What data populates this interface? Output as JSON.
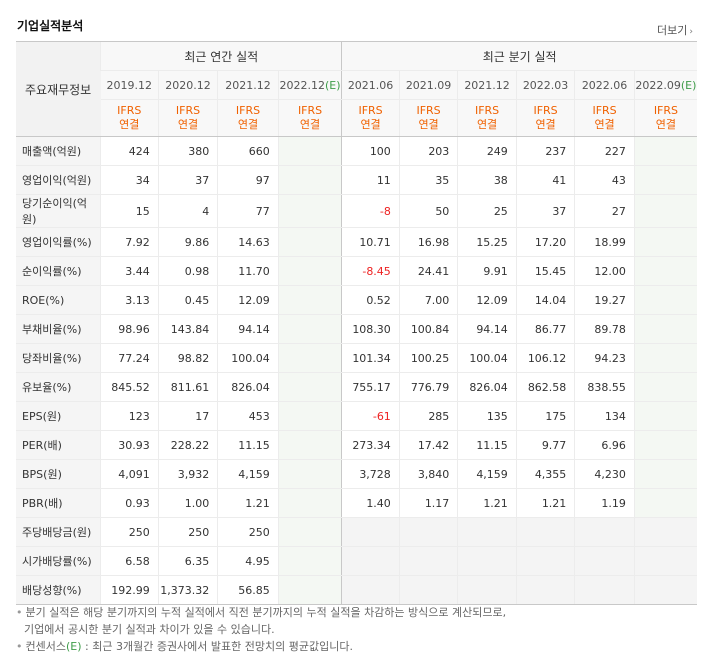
{
  "title": "기업실적분석",
  "more_label": "더보기",
  "header": {
    "row_label": "주요재무정보",
    "annual_label": "최근 연간 실적",
    "quarter_label": "최근 분기 실적",
    "annual_periods": [
      "2019.12",
      "2020.12",
      "2021.12",
      "2022.12"
    ],
    "quarter_periods": [
      "2021.06",
      "2021.09",
      "2021.12",
      "2022.03",
      "2022.06",
      "2022.09"
    ],
    "est_tag": "(E)",
    "ifrs": "IFRS",
    "consolidated": "연결"
  },
  "rows": [
    {
      "label": "매출액(억원)",
      "annual": [
        "424",
        "380",
        "660",
        ""
      ],
      "quarter": [
        "100",
        "203",
        "249",
        "237",
        "227",
        ""
      ]
    },
    {
      "label": "영업이익(억원)",
      "annual": [
        "34",
        "37",
        "97",
        ""
      ],
      "quarter": [
        "11",
        "35",
        "38",
        "41",
        "43",
        ""
      ]
    },
    {
      "label": "당기순이익(억원)",
      "annual": [
        "15",
        "4",
        "77",
        ""
      ],
      "quarter": [
        "-8",
        "50",
        "25",
        "37",
        "27",
        ""
      ]
    },
    {
      "label": "영업이익률(%)",
      "annual": [
        "7.92",
        "9.86",
        "14.63",
        ""
      ],
      "quarter": [
        "10.71",
        "16.98",
        "15.25",
        "17.20",
        "18.99",
        ""
      ]
    },
    {
      "label": "순이익률(%)",
      "annual": [
        "3.44",
        "0.98",
        "11.70",
        ""
      ],
      "quarter": [
        "-8.45",
        "24.41",
        "9.91",
        "15.45",
        "12.00",
        ""
      ]
    },
    {
      "label": "ROE(%)",
      "annual": [
        "3.13",
        "0.45",
        "12.09",
        ""
      ],
      "quarter": [
        "0.52",
        "7.00",
        "12.09",
        "14.04",
        "19.27",
        ""
      ]
    },
    {
      "label": "부채비율(%)",
      "annual": [
        "98.96",
        "143.84",
        "94.14",
        ""
      ],
      "quarter": [
        "108.30",
        "100.84",
        "94.14",
        "86.77",
        "89.78",
        ""
      ]
    },
    {
      "label": "당좌비율(%)",
      "annual": [
        "77.24",
        "98.82",
        "100.04",
        ""
      ],
      "quarter": [
        "101.34",
        "100.25",
        "100.04",
        "106.12",
        "94.23",
        ""
      ]
    },
    {
      "label": "유보율(%)",
      "annual": [
        "845.52",
        "811.61",
        "826.04",
        ""
      ],
      "quarter": [
        "755.17",
        "776.79",
        "826.04",
        "862.58",
        "838.55",
        ""
      ]
    },
    {
      "label": "EPS(원)",
      "annual": [
        "123",
        "17",
        "453",
        ""
      ],
      "quarter": [
        "-61",
        "285",
        "135",
        "175",
        "134",
        ""
      ]
    },
    {
      "label": "PER(배)",
      "annual": [
        "30.93",
        "228.22",
        "11.15",
        ""
      ],
      "quarter": [
        "273.34",
        "17.42",
        "11.15",
        "9.77",
        "6.96",
        ""
      ]
    },
    {
      "label": "BPS(원)",
      "annual": [
        "4,091",
        "3,932",
        "4,159",
        ""
      ],
      "quarter": [
        "3,728",
        "3,840",
        "4,159",
        "4,355",
        "4,230",
        ""
      ]
    },
    {
      "label": "PBR(배)",
      "annual": [
        "0.93",
        "1.00",
        "1.21",
        ""
      ],
      "quarter": [
        "1.40",
        "1.17",
        "1.21",
        "1.21",
        "1.19",
        ""
      ]
    },
    {
      "label": "주당배당금(원)",
      "annual": [
        "250",
        "250",
        "250",
        ""
      ],
      "quarter": [
        "",
        "",
        "",
        "",
        "",
        ""
      ]
    },
    {
      "label": "시가배당률(%)",
      "annual": [
        "6.58",
        "6.35",
        "4.95",
        ""
      ],
      "quarter": [
        "",
        "",
        "",
        "",
        "",
        ""
      ]
    },
    {
      "label": "배당성향(%)",
      "annual": [
        "192.99",
        "1,373.32",
        "56.85",
        ""
      ],
      "quarter": [
        "",
        "",
        "",
        "",
        "",
        ""
      ]
    }
  ],
  "notes": {
    "line1": "분기 실적은 해당 분기까지의 누적 실적에서 직전 분기까지의 누적 실적을 차감하는 방식으로 계산되므로,",
    "line2": "기업에서 공시한 분기 실적과 차이가 있을 수 있습니다.",
    "line3_a": "컨센서스",
    "line3_tag": "(E)",
    "line3_b": " : 최근 3개월간 증권사에서 발표한 전망치의 평균값입니다."
  },
  "colors": {
    "ifrs": "#f06100",
    "estimate": "#3f9d4a",
    "negative": "#e22222"
  }
}
